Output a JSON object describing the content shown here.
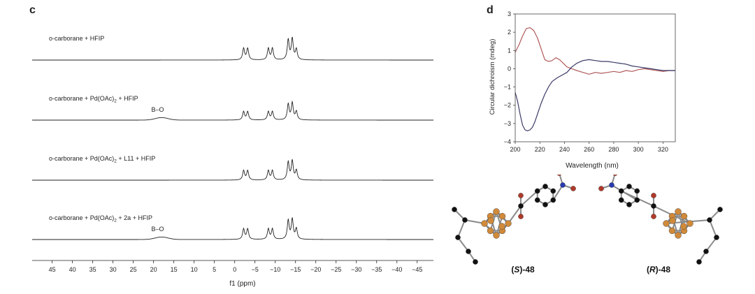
{
  "panel_c": {
    "letter": "c",
    "xlabel": "f1 (ppm)",
    "ticks": [
      45,
      40,
      35,
      30,
      25,
      20,
      15,
      10,
      5,
      0,
      -5,
      -10,
      -15,
      -20,
      -25,
      -30,
      -35,
      -40,
      -45
    ],
    "tick_labels": [
      "45",
      "40",
      "35",
      "30",
      "25",
      "20",
      "15",
      "10",
      "5",
      "0",
      "−5",
      "−10",
      "−15",
      "−20",
      "−25",
      "−30",
      "−35",
      "−40",
      "−45"
    ],
    "spectra": [
      {
        "label": "o-carborane + HFIP",
        "bo": false,
        "peaks": [
          [
            -2.2,
            0.55
          ],
          [
            -3.2,
            0.55
          ],
          [
            -8.3,
            0.55
          ],
          [
            -9.3,
            0.55
          ],
          [
            -13.2,
            0.95
          ],
          [
            -14.2,
            1.0
          ],
          [
            -15.2,
            0.5
          ]
        ]
      },
      {
        "label": "o-carborane + Pd(OAc)",
        "label_sub": "2",
        "label_tail": " + HFIP",
        "bo": true,
        "peaks": [
          [
            -2.2,
            0.4
          ],
          [
            -3.2,
            0.4
          ],
          [
            -8.3,
            0.4
          ],
          [
            -9.3,
            0.4
          ],
          [
            -13.2,
            0.75
          ],
          [
            -14.2,
            0.8
          ],
          [
            -15.2,
            0.4
          ]
        ]
      },
      {
        "label": "o-carborane + Pd(OAc)",
        "label_sub": "2",
        "label_tail": " + L11 + HFIP",
        "bo": false,
        "peaks": [
          [
            -2.2,
            0.45
          ],
          [
            -3.2,
            0.45
          ],
          [
            -8.3,
            0.45
          ],
          [
            -9.3,
            0.45
          ],
          [
            -13.2,
            0.85
          ],
          [
            -14.2,
            0.9
          ],
          [
            -15.2,
            0.45
          ]
        ]
      },
      {
        "label": "o-carborane + Pd(OAc)",
        "label_sub": "2",
        "label_tail": " + 2a + HFIP",
        "bo": true,
        "peaks": [
          [
            -2.2,
            0.5
          ],
          [
            -3.2,
            0.5
          ],
          [
            -8.3,
            0.5
          ],
          [
            -9.3,
            0.5
          ],
          [
            -13.2,
            0.9
          ],
          [
            -14.2,
            0.95
          ],
          [
            -15.2,
            0.5
          ]
        ]
      }
    ],
    "bo_label": "B–O"
  },
  "panel_d": {
    "letter": "d",
    "chart_data": {
      "type": "line",
      "xlabel": "Wavelength (nm)",
      "ylabel": "Circular dichroism (mdeg)",
      "xlim": [
        200,
        330
      ],
      "ylim": [
        -4,
        3
      ],
      "xticks": [
        200,
        220,
        240,
        260,
        280,
        300,
        320
      ],
      "yticks": [
        -4,
        -3,
        -2,
        -1,
        0,
        1,
        2,
        3
      ],
      "series": [
        {
          "color": "#b05a5a",
          "x": [
            200,
            203,
            206,
            209,
            212,
            215,
            218,
            221,
            224,
            227,
            230,
            233,
            236,
            239,
            242,
            246,
            250,
            255,
            260,
            265,
            270,
            275,
            280,
            285,
            290,
            295,
            300,
            305,
            310,
            315,
            320,
            325,
            330
          ],
          "y": [
            0.9,
            1.3,
            1.8,
            2.2,
            2.25,
            2.1,
            1.7,
            1.1,
            0.5,
            0.4,
            0.45,
            0.6,
            0.5,
            0.3,
            0.1,
            0.0,
            -0.1,
            -0.2,
            -0.3,
            -0.2,
            -0.25,
            -0.2,
            -0.15,
            -0.2,
            -0.1,
            -0.15,
            -0.05,
            0.0,
            -0.05,
            -0.1,
            -0.15,
            -0.1,
            -0.1
          ]
        },
        {
          "color": "#3a3a66",
          "x": [
            200,
            202,
            204,
            206,
            208,
            210,
            212,
            214,
            216,
            218,
            221,
            224,
            227,
            230,
            234,
            238,
            242,
            246,
            250,
            255,
            260,
            265,
            270,
            275,
            280,
            285,
            290,
            295,
            300,
            305,
            310,
            315,
            320,
            325,
            330
          ],
          "y": [
            -1.3,
            -1.8,
            -2.5,
            -3.1,
            -3.35,
            -3.4,
            -3.35,
            -3.2,
            -2.9,
            -2.5,
            -1.9,
            -1.4,
            -1.0,
            -0.7,
            -0.5,
            -0.35,
            -0.2,
            0.1,
            0.3,
            0.45,
            0.5,
            0.45,
            0.4,
            0.4,
            0.35,
            0.3,
            0.25,
            0.15,
            0.1,
            0.05,
            0.0,
            -0.05,
            -0.1,
            -0.1,
            -0.1
          ]
        }
      ]
    }
  },
  "molecules": {
    "s_label_pre": "(",
    "s_label_letter": "S",
    "s_label_post": ")-48",
    "r_label_pre": "(",
    "r_label_letter": "R",
    "r_label_post": ")-48"
  }
}
